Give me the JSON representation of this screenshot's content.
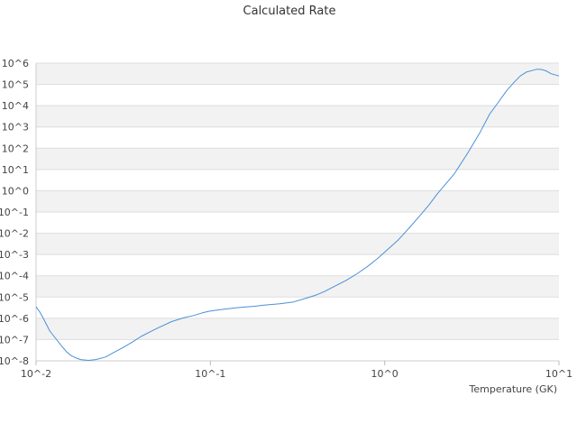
{
  "chart_data": {
    "type": "line",
    "title": "Calculated Rate",
    "xlabel": "Temperature (GK)",
    "ylabel": "",
    "x_scale": "log",
    "y_scale": "log",
    "xlim": [
      0.01,
      10
    ],
    "ylim": [
      1e-08,
      1000000.0
    ],
    "x_ticks": [
      {
        "value": 0.01,
        "label": "10^-2"
      },
      {
        "value": 0.1,
        "label": "10^-1"
      },
      {
        "value": 1,
        "label": "10^0"
      },
      {
        "value": 10,
        "label": "10^1"
      }
    ],
    "y_ticks": [
      {
        "value": 1e-08,
        "label": "10^-8"
      },
      {
        "value": 1e-07,
        "label": "10^-7"
      },
      {
        "value": 1e-06,
        "label": "10^-6"
      },
      {
        "value": 1e-05,
        "label": "10^-5"
      },
      {
        "value": 0.0001,
        "label": "10^-4"
      },
      {
        "value": 0.001,
        "label": "10^-3"
      },
      {
        "value": 0.01,
        "label": "10^-2"
      },
      {
        "value": 0.1,
        "label": "10^-1"
      },
      {
        "value": 1,
        "label": "10^0"
      },
      {
        "value": 10,
        "label": "10^1"
      },
      {
        "value": 100,
        "label": "10^2"
      },
      {
        "value": 1000,
        "label": "10^3"
      },
      {
        "value": 10000,
        "label": "10^4"
      },
      {
        "value": 100000,
        "label": "10^5"
      },
      {
        "value": 1000000,
        "label": "10^6"
      }
    ],
    "grid": "alternating horizontal bands",
    "legend": "none",
    "colors": {
      "line": "#4a90d9",
      "band": "#f2f2f2",
      "grid": "#dddddd"
    },
    "series": [
      {
        "x": [
          0.01,
          0.0105,
          0.011,
          0.0115,
          0.012,
          0.013,
          0.014,
          0.015,
          0.016,
          0.017,
          0.018,
          0.02,
          0.022,
          0.025,
          0.028,
          0.032,
          0.036,
          0.04,
          0.045,
          0.05,
          0.06,
          0.07,
          0.08,
          0.09,
          0.1,
          0.12,
          0.14,
          0.16,
          0.18,
          0.2,
          0.25,
          0.3,
          0.35,
          0.4,
          0.45,
          0.5,
          0.6,
          0.7,
          0.8,
          0.9,
          1.0,
          1.2,
          1.4,
          1.6,
          1.8,
          2.0,
          2.5,
          3.0,
          3.5,
          4.0,
          4.5,
          5.0,
          5.5,
          6.0,
          6.5,
          7.0,
          7.5,
          8.0,
          8.5,
          9.0,
          10.0
        ],
        "y": [
          3.5e-06,
          2e-06,
          1e-06,
          5e-07,
          2.5e-07,
          1.1e-07,
          5e-08,
          2.6e-08,
          1.7e-08,
          1.35e-08,
          1.15e-08,
          1.05e-08,
          1.15e-08,
          1.5e-08,
          2.5e-08,
          4.5e-08,
          8e-08,
          1.4e-07,
          2.3e-07,
          3.5e-07,
          7e-07,
          1.05e-06,
          1.35e-06,
          1.8e-06,
          2.2e-06,
          2.7e-06,
          3.1e-06,
          3.4e-06,
          3.7e-06,
          4.1e-06,
          4.8e-06,
          5.9e-06,
          8.5e-06,
          1.2e-05,
          1.8e-05,
          2.8e-05,
          6e-05,
          0.00013,
          0.00028,
          0.0006,
          0.0013,
          0.005,
          0.02,
          0.07,
          0.22,
          0.7,
          6,
          60,
          500,
          4000,
          15000,
          50000,
          120000,
          250000,
          380000,
          450000,
          520000,
          500000,
          420000,
          320000,
          250000
        ]
      }
    ]
  }
}
